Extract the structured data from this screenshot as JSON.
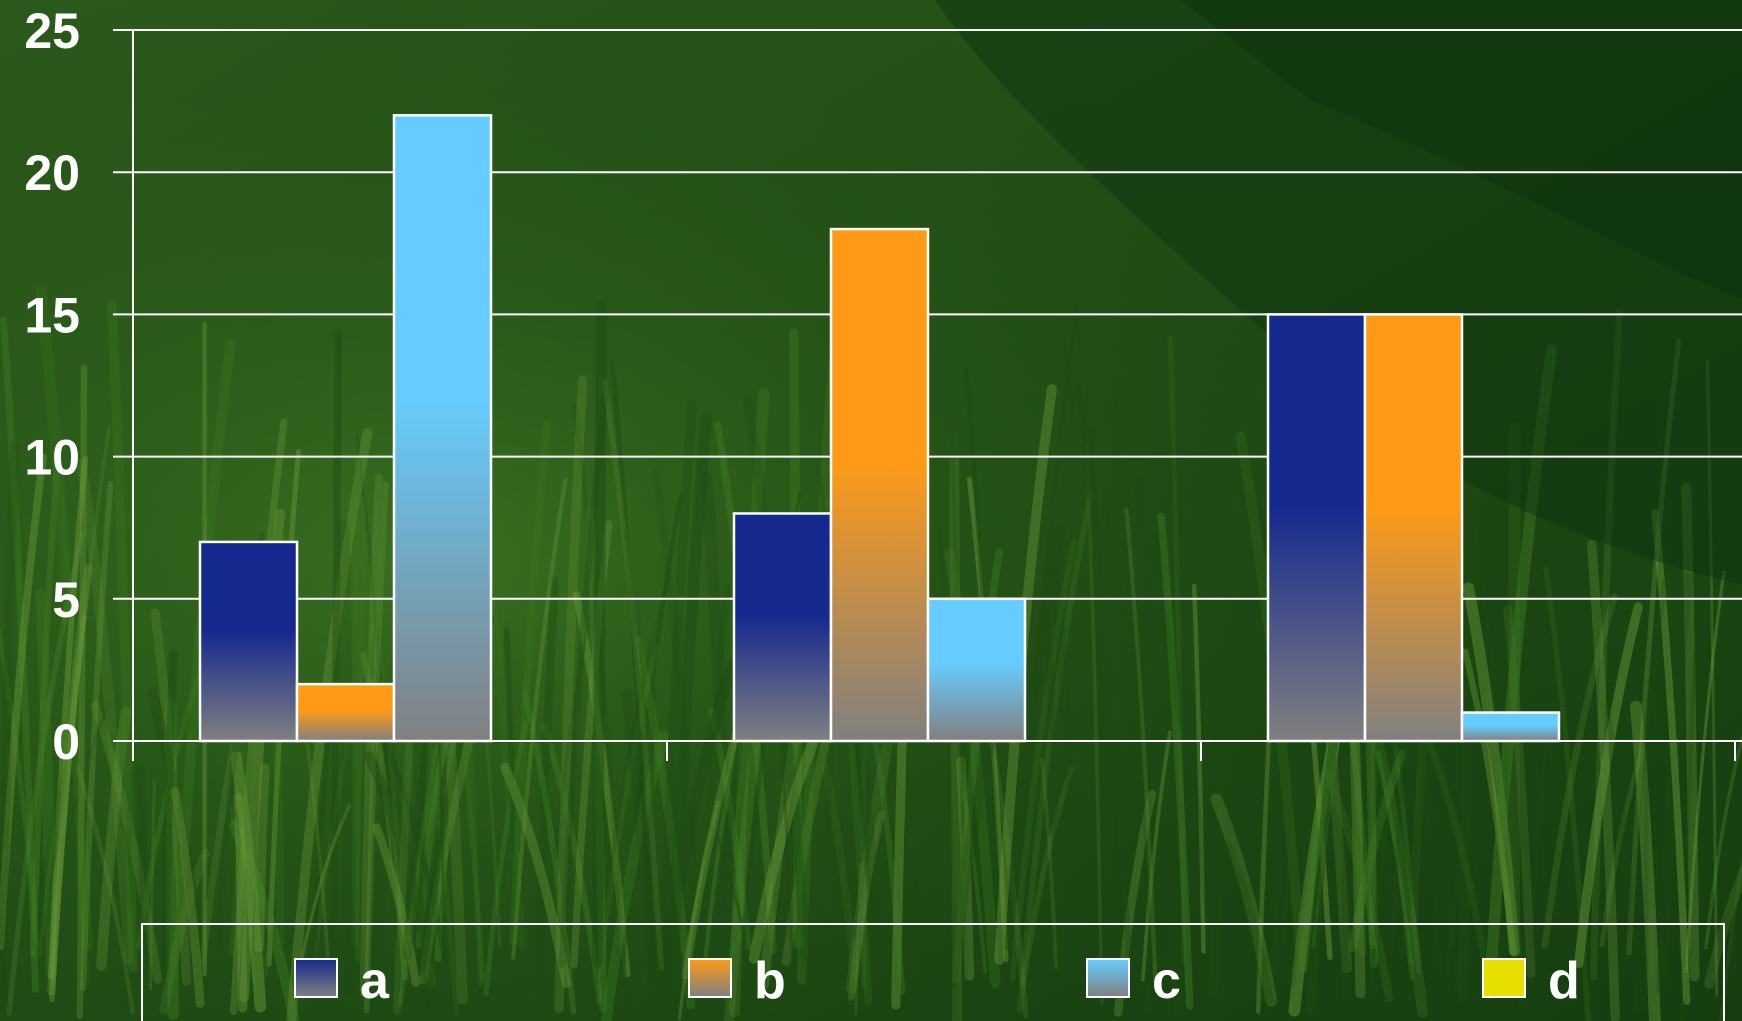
{
  "chart_data": {
    "type": "bar",
    "categories": [
      "",
      "",
      ""
    ],
    "series": [
      {
        "name": "a",
        "values": [
          7,
          8,
          15
        ],
        "color": "#16298f"
      },
      {
        "name": "b",
        "values": [
          2,
          18,
          15
        ],
        "color": "#ff9a17"
      },
      {
        "name": "c",
        "values": [
          22,
          5,
          1
        ],
        "color": "#66ccff"
      },
      {
        "name": "d",
        "values": [
          0,
          0,
          0
        ],
        "color": "#e6df00"
      }
    ],
    "title": "",
    "xlabel": "",
    "ylabel": "",
    "ylim": [
      0,
      25
    ],
    "yticks": [
      "0",
      "5",
      "10",
      "15",
      "20",
      "25"
    ],
    "grid": true,
    "legend_position": "bottom"
  },
  "theme": {
    "background": "grass-photo",
    "gradient_bottom": "#808080",
    "gridline": "#ffffff",
    "text": "#ffffff"
  }
}
